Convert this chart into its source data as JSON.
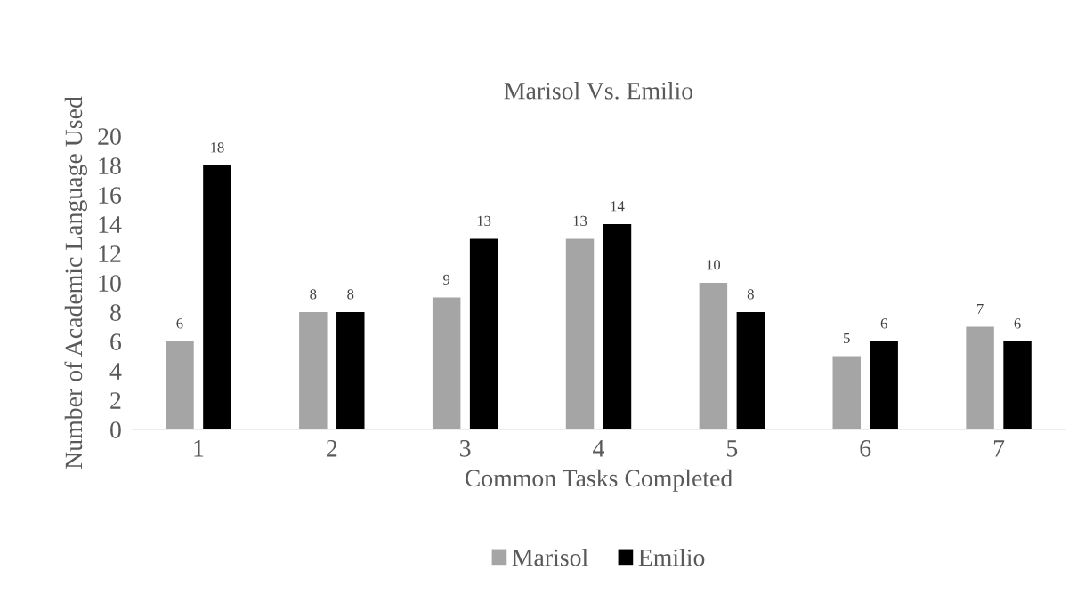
{
  "chart_data": {
    "type": "bar",
    "title": "Marisol Vs. Emilio",
    "xlabel": "Common Tasks Completed",
    "ylabel": "Number of Academic Language Used",
    "categories": [
      "1",
      "2",
      "3",
      "4",
      "5",
      "6",
      "7"
    ],
    "series": [
      {
        "name": "Marisol",
        "color": "#a5a5a5",
        "values": [
          6,
          8,
          9,
          13,
          10,
          5,
          7
        ]
      },
      {
        "name": "Emilio",
        "color": "#000000",
        "values": [
          18,
          8,
          13,
          14,
          8,
          6,
          6
        ]
      }
    ],
    "ylim": [
      0,
      20
    ],
    "yticks": [
      0,
      2,
      4,
      6,
      8,
      10,
      12,
      14,
      16,
      18,
      20
    ],
    "grid": false,
    "legend": "bottom",
    "data_labels": true
  }
}
